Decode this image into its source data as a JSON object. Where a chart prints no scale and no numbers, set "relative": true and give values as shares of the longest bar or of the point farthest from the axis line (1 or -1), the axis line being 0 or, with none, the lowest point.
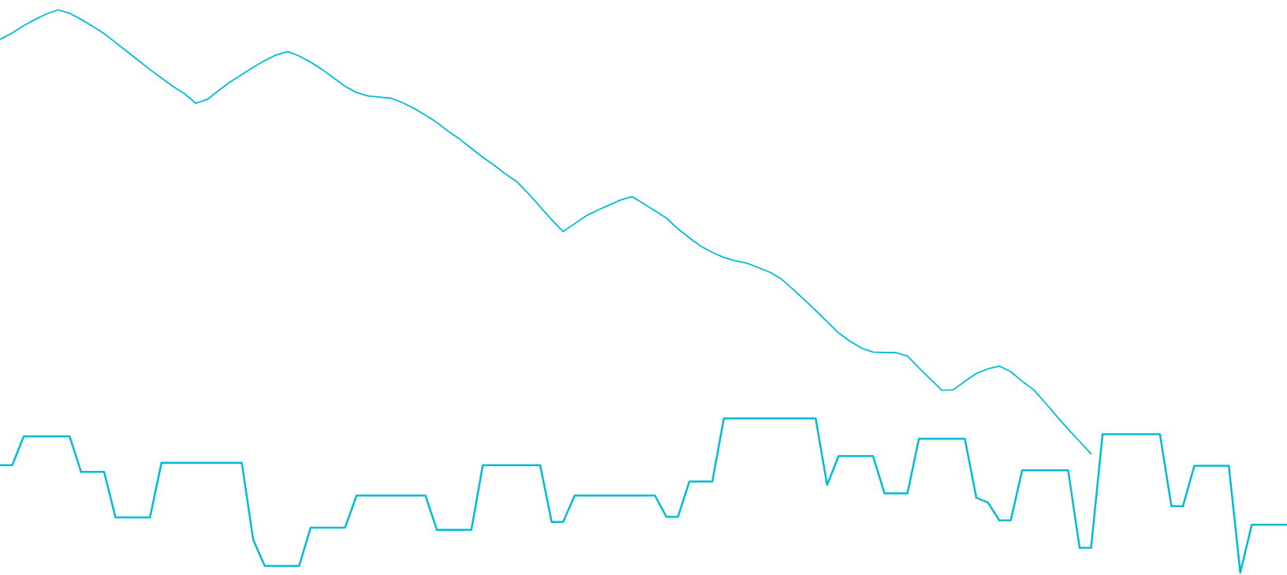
{
  "chart_data": {
    "type": "line",
    "relative": true,
    "categories": [
      null,
      null,
      null,
      null,
      null,
      null,
      null,
      null,
      null,
      null,
      null,
      null,
      null,
      null,
      null,
      null,
      null,
      null,
      null,
      null,
      null,
      null,
      null,
      null,
      null,
      null,
      null,
      null,
      null,
      null,
      null,
      null,
      null,
      null,
      null,
      null,
      null,
      null,
      null,
      null,
      null,
      null,
      null,
      null,
      null,
      null,
      null,
      null,
      null,
      null,
      null,
      null,
      null,
      null,
      null,
      null,
      null,
      null,
      null,
      null,
      null,
      null,
      null,
      null,
      null,
      null,
      null,
      null,
      null,
      null,
      null,
      null,
      null,
      null,
      null,
      null,
      null,
      null,
      null,
      null,
      null,
      null,
      null,
      null,
      null,
      null,
      null,
      null,
      null,
      null,
      null,
      null,
      null,
      null,
      null,
      null,
      null,
      null,
      null,
      null,
      null,
      null,
      null,
      null,
      null,
      null,
      null,
      null,
      null,
      null,
      null,
      null,
      null
    ],
    "series": [
      {
        "color": "#00bcd4",
        "values": [
          0.948,
          0.959,
          0.972,
          0.983,
          0.993,
          1,
          0.994,
          0.983,
          0.971,
          0.958,
          0.942,
          0.926,
          0.91,
          0.894,
          0.879,
          0.864,
          0.851,
          0.834,
          0.841,
          0.857,
          0.872,
          0.885,
          0.898,
          0.91,
          0.92,
          0.926,
          0.918,
          0.907,
          0.894,
          0.879,
          0.864,
          0.853,
          0.847,
          0.845,
          0.843,
          0.835,
          0.825,
          0.813,
          0.8,
          0.784,
          0.77,
          0.754,
          0.738,
          0.724,
          0.708,
          0.694,
          0.673,
          0.65,
          0.627,
          0.606,
          0.62,
          0.634,
          0.644,
          0.653,
          0.662,
          0.668,
          0.656,
          0.643,
          0.63,
          0.611,
          0.595,
          0.58,
          0.569,
          0.56,
          0.554,
          0.55,
          0.542,
          0.534,
          0.522,
          0.504,
          0.485,
          0.466,
          0.446,
          0.426,
          0.411,
          0.399,
          0.392,
          0.391,
          0.391,
          0.385,
          0.364,
          0.344,
          0.324,
          0.325,
          0.34,
          0.354,
          0.362,
          0.367,
          0.357,
          0.34,
          0.325,
          0.302,
          0.278,
          0.255,
          0.233,
          0.211,
          null,
          null,
          null,
          null,
          null,
          null,
          null,
          null,
          null,
          null,
          null,
          null,
          null,
          null,
          null,
          null,
          null
        ]
      },
      {
        "color": "#00bcd4",
        "values": [
          0.191,
          0.191,
          0.242,
          0.242,
          0.242,
          0.242,
          0.242,
          0.179,
          0.179,
          0.179,
          0.098,
          0.098,
          0.098,
          0.098,
          0.195,
          0.195,
          0.195,
          0.195,
          0.195,
          0.195,
          0.195,
          0.195,
          0.058,
          0.012,
          0.012,
          0.012,
          0.012,
          0.08,
          0.08,
          0.08,
          0.08,
          0.137,
          0.137,
          0.137,
          0.137,
          0.137,
          0.137,
          0.137,
          0.076,
          0.076,
          0.076,
          0.076,
          0.191,
          0.191,
          0.191,
          0.191,
          0.191,
          0.191,
          0.09,
          0.09,
          0.137,
          0.137,
          0.137,
          0.137,
          0.137,
          0.137,
          0.137,
          0.137,
          0.099,
          0.099,
          0.162,
          0.162,
          0.162,
          0.274,
          0.274,
          0.274,
          0.274,
          0.274,
          0.274,
          0.274,
          0.274,
          0.274,
          0.156,
          0.207,
          0.207,
          0.207,
          0.207,
          0.141,
          0.141,
          0.141,
          0.238,
          0.238,
          0.238,
          0.238,
          0.238,
          0.133,
          0.125,
          0.093,
          0.093,
          0.182,
          0.182,
          0.182,
          0.182,
          0.182,
          0.044,
          0.044,
          0.246,
          0.246,
          0.246,
          0.246,
          0.246,
          0.246,
          0.118,
          0.118,
          0.19,
          0.19,
          0.19,
          0.19,
          0,
          0.085,
          0.085,
          0.085,
          0.085
        ]
      }
    ]
  }
}
